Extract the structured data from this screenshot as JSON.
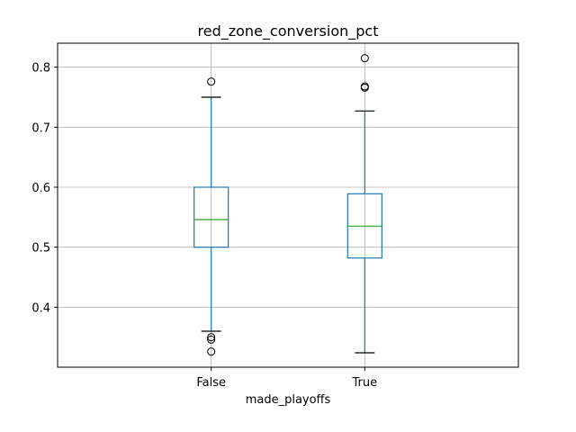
{
  "chart_data": {
    "type": "box",
    "title": "red_zone_conversion_pct",
    "xlabel": "made_playoffs",
    "ylabel": "",
    "ylim": [
      0.3,
      0.84
    ],
    "yticks": [
      0.4,
      0.5,
      0.6,
      0.7,
      0.8
    ],
    "ytick_labels": [
      "0.4",
      "0.5",
      "0.6",
      "0.7",
      "0.8"
    ],
    "grid": true,
    "categories": [
      "False",
      "True"
    ],
    "boxes": [
      {
        "category": "False",
        "whisker_low": 0.36,
        "q1": 0.5,
        "median": 0.546,
        "q3": 0.6,
        "whisker_high": 0.75,
        "outliers": [
          0.776,
          0.35,
          0.346,
          0.326
        ]
      },
      {
        "category": "True",
        "whisker_low": 0.324,
        "q1": 0.482,
        "median": 0.535,
        "q3": 0.589,
        "whisker_high": 0.727,
        "outliers": [
          0.815,
          0.768,
          0.766
        ]
      }
    ],
    "colors": {
      "box": "#1f77b4",
      "median": "#2ca02c",
      "cap": "#000000",
      "grid": "#b0b0b0"
    }
  }
}
